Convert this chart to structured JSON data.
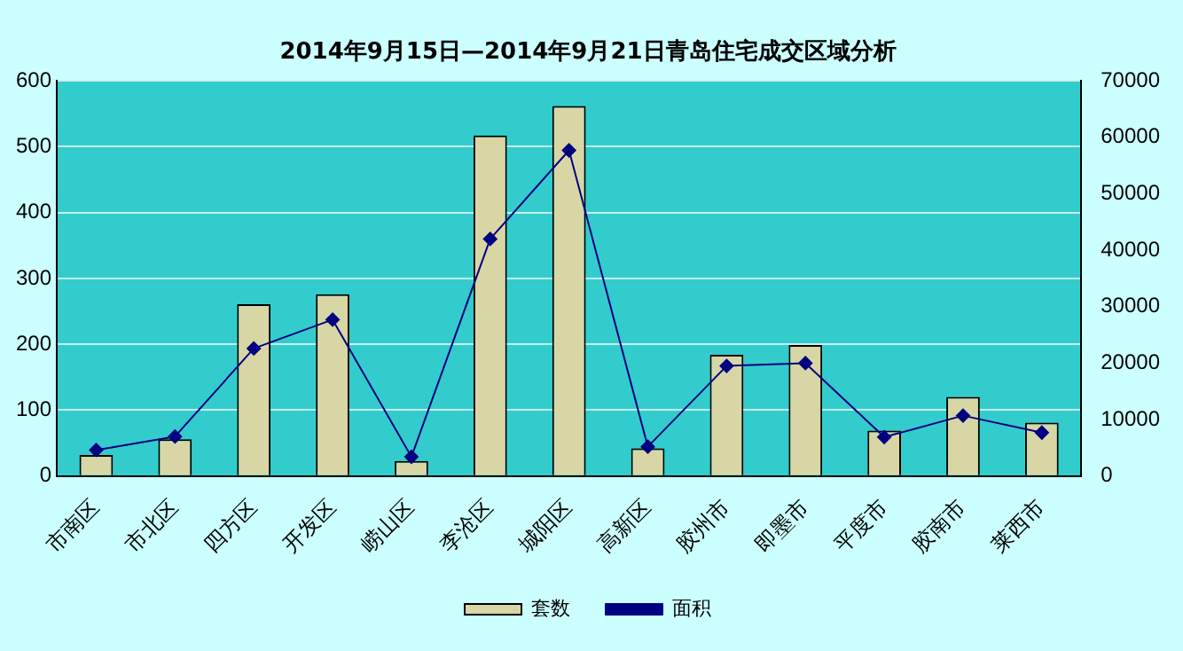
{
  "chart_data": {
    "type": "bar",
    "title": "2014年9月15日—2014年9月21日青岛住宅成交区域分析",
    "categories": [
      "市南区",
      "市北区",
      "四方区",
      "开发区",
      "崂山区",
      "李沧区",
      "城阳区",
      "高新区",
      "胶州市",
      "即墨市",
      "平度市",
      "胶南市",
      "莱西市"
    ],
    "series": [
      {
        "name": "套数",
        "color": "#d9d6a6",
        "values": [
          32,
          56,
          261,
          276,
          23,
          517,
          562,
          42,
          184,
          199,
          69,
          120,
          81
        ]
      },
      {
        "name": "面积",
        "type": "line",
        "axis": "y2",
        "color": "#000080",
        "values": [
          4600,
          7000,
          22600,
          27700,
          3400,
          42000,
          57700,
          5200,
          19500,
          20000,
          6900,
          10700,
          7700
        ]
      }
    ],
    "ylim": [
      0,
      600
    ],
    "yticks": [
      0,
      100,
      200,
      300,
      400,
      500,
      600
    ],
    "y2lim": [
      0,
      70000
    ],
    "y2ticks": [
      0,
      10000,
      20000,
      30000,
      40000,
      50000,
      60000,
      70000
    ],
    "grid": "y",
    "legend": "bottom",
    "marker": "diamond",
    "line_style": "solid"
  }
}
